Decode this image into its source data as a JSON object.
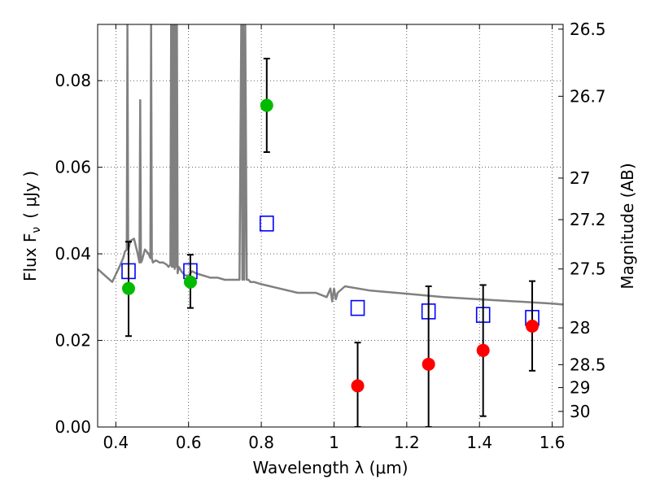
{
  "chart_data": {
    "type": "scatter",
    "xlabel": "Wavelength  λ (μm)",
    "ylabel": "Flux  F",
    "ylabel_sub": "ν",
    "ylabel_unit": "( μJy )",
    "y2label": "Magnitude (AB)",
    "xlim": [
      0.35,
      1.63
    ],
    "ylim": [
      0.0,
      0.093
    ],
    "grid": true,
    "x_ticks": [
      {
        "value": 0.4,
        "label": "0.4"
      },
      {
        "value": 0.6,
        "label": "0.6"
      },
      {
        "value": 0.8,
        "label": "0.8"
      },
      {
        "value": 1.0,
        "label": "1"
      },
      {
        "value": 1.2,
        "label": "1.2"
      },
      {
        "value": 1.4,
        "label": "1.4"
      },
      {
        "value": 1.6,
        "label": "1.6"
      }
    ],
    "y_ticks": [
      {
        "value": 0.0,
        "label": "0.00"
      },
      {
        "value": 0.02,
        "label": "0.02"
      },
      {
        "value": 0.04,
        "label": "0.04"
      },
      {
        "value": 0.06,
        "label": "0.06"
      },
      {
        "value": 0.08,
        "label": "0.08"
      }
    ],
    "y2_ticks": [
      {
        "flux": 0.0919,
        "label": "26.5"
      },
      {
        "flux": 0.0764,
        "label": "26.7"
      },
      {
        "flux": 0.0575,
        "label": "27"
      },
      {
        "flux": 0.0479,
        "label": "27.2"
      },
      {
        "flux": 0.0365,
        "label": "27.5"
      },
      {
        "flux": 0.0229,
        "label": "28"
      },
      {
        "flux": 0.0144,
        "label": "28.5"
      },
      {
        "flux": 0.0091,
        "label": "29"
      },
      {
        "flux": 0.0036,
        "label": "30"
      }
    ],
    "series": [
      {
        "kind": "template",
        "color": "#808080",
        "x": [
          0.35,
          0.37,
          0.39,
          0.41,
          0.42,
          0.425,
          0.43,
          0.432,
          0.434,
          0.436,
          0.44,
          0.45,
          0.46,
          0.465,
          0.467,
          0.469,
          0.472,
          0.48,
          0.49,
          0.495,
          0.497,
          0.499,
          0.502,
          0.51,
          0.52,
          0.53,
          0.54,
          0.545,
          0.55,
          0.552,
          0.554,
          0.556,
          0.558,
          0.56,
          0.562,
          0.564,
          0.566,
          0.568,
          0.57,
          0.573,
          0.58,
          0.59,
          0.6,
          0.61,
          0.62,
          0.64,
          0.66,
          0.68,
          0.7,
          0.72,
          0.74,
          0.745,
          0.748,
          0.75,
          0.753,
          0.756,
          0.76,
          0.765,
          0.77,
          0.78,
          0.8,
          0.85,
          0.9,
          0.95,
          0.98,
          0.99,
          0.995,
          1.0,
          1.005,
          1.01,
          1.03,
          1.1,
          1.2,
          1.3,
          1.4,
          1.5,
          1.6,
          1.63
        ],
        "y": [
          0.0365,
          0.035,
          0.0335,
          0.037,
          0.039,
          0.0405,
          0.041,
          0.093,
          0.041,
          0.0415,
          0.043,
          0.0435,
          0.04,
          0.038,
          0.0755,
          0.038,
          0.0385,
          0.041,
          0.04,
          0.039,
          0.093,
          0.039,
          0.038,
          0.0385,
          0.038,
          0.038,
          0.0375,
          0.037,
          0.0375,
          0.093,
          0.037,
          0.093,
          0.037,
          0.093,
          0.0365,
          0.093,
          0.037,
          0.093,
          0.0355,
          0.037,
          0.036,
          0.035,
          0.035,
          0.036,
          0.0355,
          0.035,
          0.0345,
          0.0345,
          0.034,
          0.034,
          0.034,
          0.093,
          0.034,
          0.093,
          0.034,
          0.093,
          0.034,
          0.034,
          0.0335,
          0.0335,
          0.033,
          0.032,
          0.031,
          0.031,
          0.03,
          0.032,
          0.029,
          0.032,
          0.0295,
          0.031,
          0.0325,
          0.0315,
          0.0308,
          0.03,
          0.0295,
          0.029,
          0.0285,
          0.0283
        ]
      },
      {
        "kind": "model",
        "marker": "square-open",
        "color": "#0000ff",
        "x": [
          0.435,
          0.605,
          0.815,
          1.065,
          1.26,
          1.41,
          1.545
        ],
        "y": [
          0.036,
          0.036,
          0.047,
          0.0275,
          0.0267,
          0.0259,
          0.0252
        ]
      },
      {
        "kind": "detection",
        "marker": "circle",
        "color": "#00bb00",
        "x": [
          0.435,
          0.605,
          0.815
        ],
        "y": [
          0.032,
          0.0335,
          0.0743
        ],
        "err_low": [
          0.021,
          0.0275,
          0.0635
        ],
        "err_high": [
          0.0428,
          0.0398,
          0.0851
        ]
      },
      {
        "kind": "low_sn",
        "marker": "circle",
        "color": "#ff0000",
        "x": [
          1.065,
          1.26,
          1.41,
          1.545
        ],
        "y": [
          0.0095,
          0.0145,
          0.0177,
          0.0233
        ],
        "err_low": [
          0.0,
          0.0,
          0.0025,
          0.013
        ],
        "err_high": [
          0.0195,
          0.0325,
          0.0328,
          0.0337
        ]
      }
    ]
  }
}
